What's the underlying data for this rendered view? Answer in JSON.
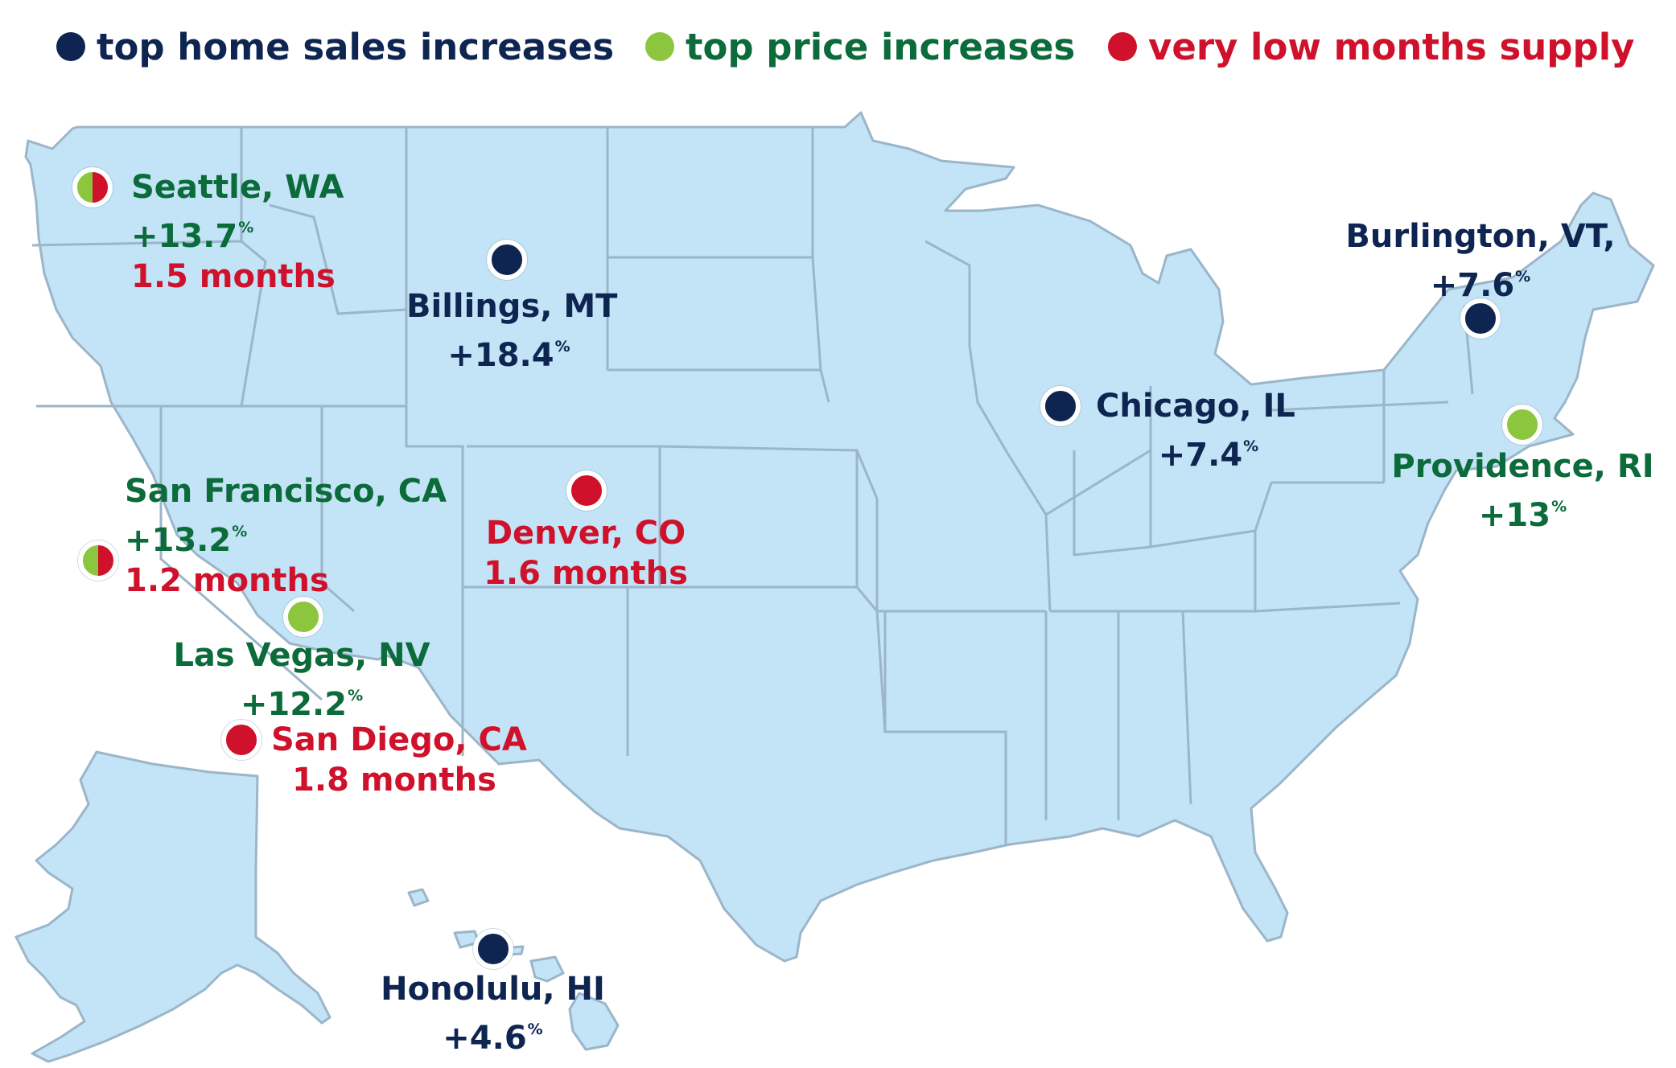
{
  "colors": {
    "sales": "#0d2550",
    "price": "#8cc63f",
    "supply": "#d0112b",
    "price_text": "#0b6b3a",
    "land": "#c3e3f6",
    "border": "#9bb5c9"
  },
  "legend": [
    {
      "label": "top home sales increases",
      "category": "sales"
    },
    {
      "label": "top price increases",
      "category": "price"
    },
    {
      "label": "very low months supply",
      "category": "supply"
    }
  ],
  "markers": {
    "seattle": {
      "city": "Seattle, WA",
      "value": "+13.7",
      "unit": "%",
      "months": "1.5 months",
      "categories": [
        "price",
        "supply"
      ]
    },
    "billings": {
      "city": "Billings, MT",
      "value": "+18.4",
      "unit": "%",
      "categories": [
        "sales"
      ]
    },
    "burlington": {
      "city": "Burlington, VT,",
      "value": "+7.6",
      "unit": "%",
      "categories": [
        "sales"
      ]
    },
    "chicago": {
      "city": "Chicago, IL",
      "value": "+7.4",
      "unit": "%",
      "categories": [
        "sales"
      ]
    },
    "providence": {
      "city": "Providence, RI",
      "value": "+13",
      "unit": "%",
      "categories": [
        "price"
      ]
    },
    "san_francisco": {
      "city": "San Francisco, CA",
      "value": "+13.2",
      "unit": "%",
      "months": "1.2 months",
      "categories": [
        "price",
        "supply"
      ]
    },
    "denver": {
      "city": "Denver, CO",
      "months": "1.6 months",
      "categories": [
        "supply"
      ]
    },
    "las_vegas": {
      "city": "Las Vegas, NV",
      "value": "+12.2",
      "unit": "%",
      "categories": [
        "price"
      ]
    },
    "san_diego": {
      "city": "San Diego, CA",
      "months": "1.8 months",
      "categories": [
        "supply"
      ]
    },
    "honolulu": {
      "city": "Honolulu, HI",
      "value": "+4.6",
      "unit": "%",
      "categories": [
        "sales"
      ]
    }
  }
}
